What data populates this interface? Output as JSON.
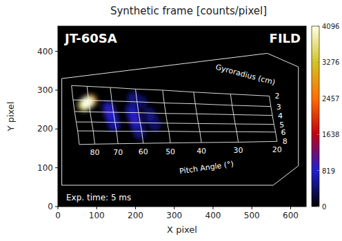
{
  "chart_data": {
    "type": "image",
    "title": "Synthetic frame [counts/pixel]",
    "x_label": "X pixel",
    "y_label": "Y pixel",
    "xlim": [
      0,
      640
    ],
    "ylim": [
      0,
      465
    ],
    "xticks": [
      0,
      100,
      200,
      300,
      400,
      500,
      600
    ],
    "yticks": [
      0,
      100,
      200,
      300,
      400
    ],
    "grid": false,
    "device": "JT-60SA",
    "diagnostic": "FILD",
    "exposure_label": "Exp. time: 5 ms",
    "colorbar": {
      "range": [
        0,
        4096
      ],
      "ticks": [
        0,
        819,
        1638,
        2457,
        3276,
        4096
      ]
    },
    "outline": {
      "x": [
        10,
        540,
        620,
        620,
        555,
        10
      ],
      "y": [
        330,
        395,
        360,
        105,
        55,
        55
      ]
    },
    "strike_map": {
      "gyroradius_label": "Gyroradius (cm)",
      "pitch_label": "Pitch Angle (°)",
      "gyroradius": [
        2,
        3,
        4,
        5,
        6,
        8
      ],
      "pitch": [
        null,
        80,
        70,
        60,
        50,
        40,
        30,
        20
      ],
      "rows": [
        {
          "x": [
            35,
            75,
            135,
            200,
            270,
            350,
            445,
            545
          ],
          "y": [
            312,
            310,
            307,
            303,
            300,
            295,
            290,
            285
          ]
        },
        {
          "x": [
            39,
            79,
            139,
            204,
            274,
            354,
            449,
            549
          ],
          "y": [
            275,
            274,
            272,
            270,
            267,
            265,
            261,
            258
          ]
        },
        {
          "x": [
            43,
            83,
            143,
            208,
            278,
            358,
            453,
            553
          ],
          "y": [
            245,
            244,
            243,
            242,
            240,
            239,
            237,
            235
          ]
        },
        {
          "x": [
            47,
            87,
            147,
            212,
            282,
            362,
            457,
            557
          ],
          "y": [
            218,
            218,
            217,
            216,
            215,
            214,
            213,
            212
          ]
        },
        {
          "x": [
            51,
            91,
            151,
            216,
            286,
            366,
            461,
            561
          ],
          "y": [
            195,
            195,
            194,
            194,
            194,
            193,
            193,
            192
          ]
        },
        {
          "x": [
            55,
            95,
            155,
            220,
            290,
            370,
            465,
            565
          ],
          "y": [
            160,
            161,
            162,
            163,
            164,
            165,
            166,
            168
          ]
        }
      ]
    },
    "spots": [
      {
        "x": 130,
        "y": 255,
        "value": 700
      },
      {
        "x": 135,
        "y": 240,
        "value": 900
      },
      {
        "x": 140,
        "y": 225,
        "value": 800
      },
      {
        "x": 145,
        "y": 210,
        "value": 600
      },
      {
        "x": 190,
        "y": 250,
        "value": 600
      },
      {
        "x": 195,
        "y": 235,
        "value": 800
      },
      {
        "x": 200,
        "y": 220,
        "value": 900
      },
      {
        "x": 205,
        "y": 205,
        "value": 700
      },
      {
        "x": 210,
        "y": 190,
        "value": 500
      },
      {
        "x": 235,
        "y": 240,
        "value": 400
      },
      {
        "x": 242,
        "y": 225,
        "value": 500
      },
      {
        "x": 250,
        "y": 210,
        "value": 400
      },
      {
        "x": 195,
        "y": 280,
        "value": 500
      },
      {
        "x": 215,
        "y": 270,
        "value": 400
      },
      {
        "x": 84,
        "y": 273,
        "value": 3000
      },
      {
        "x": 68,
        "y": 262,
        "value": 3600
      },
      {
        "x": 75,
        "y": 268,
        "value": 4096
      }
    ]
  }
}
